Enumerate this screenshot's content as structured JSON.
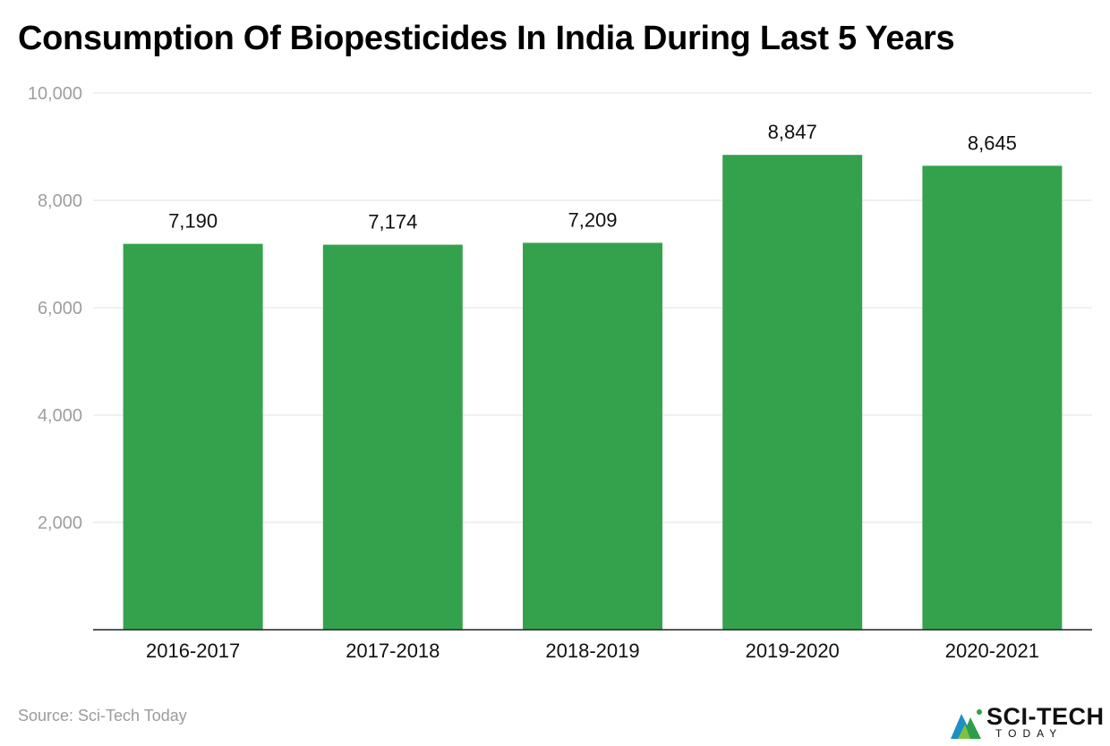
{
  "title": "Consumption Of Biopesticides In India During Last 5 Years",
  "source": "Source: Sci-Tech Today",
  "logo": {
    "main": "SCI-TECH",
    "sub": "TODAY"
  },
  "colors": {
    "bar": "#34a24d",
    "grid": "#e0e0e0",
    "axis": "#222222",
    "tick_text": "#9e9e9e",
    "label_text": "#111111"
  },
  "chart_data": {
    "type": "bar",
    "title": "Consumption Of Biopesticides In India During Last 5 Years",
    "xlabel": "",
    "ylabel": "",
    "categories": [
      "2016-2017",
      "2017-2018",
      "2018-2019",
      "2019-2020",
      "2020-2021"
    ],
    "values": [
      7190,
      7174,
      7209,
      8847,
      8645
    ],
    "value_labels": [
      "7,190",
      "7,174",
      "7,209",
      "8,847",
      "8,645"
    ],
    "ylim": [
      0,
      10000
    ],
    "yticks": [
      2000,
      4000,
      6000,
      8000,
      10000
    ],
    "ytick_labels": [
      "2,000",
      "4,000",
      "6,000",
      "8,000",
      "10,000"
    ],
    "grid": true,
    "legend": "none"
  }
}
